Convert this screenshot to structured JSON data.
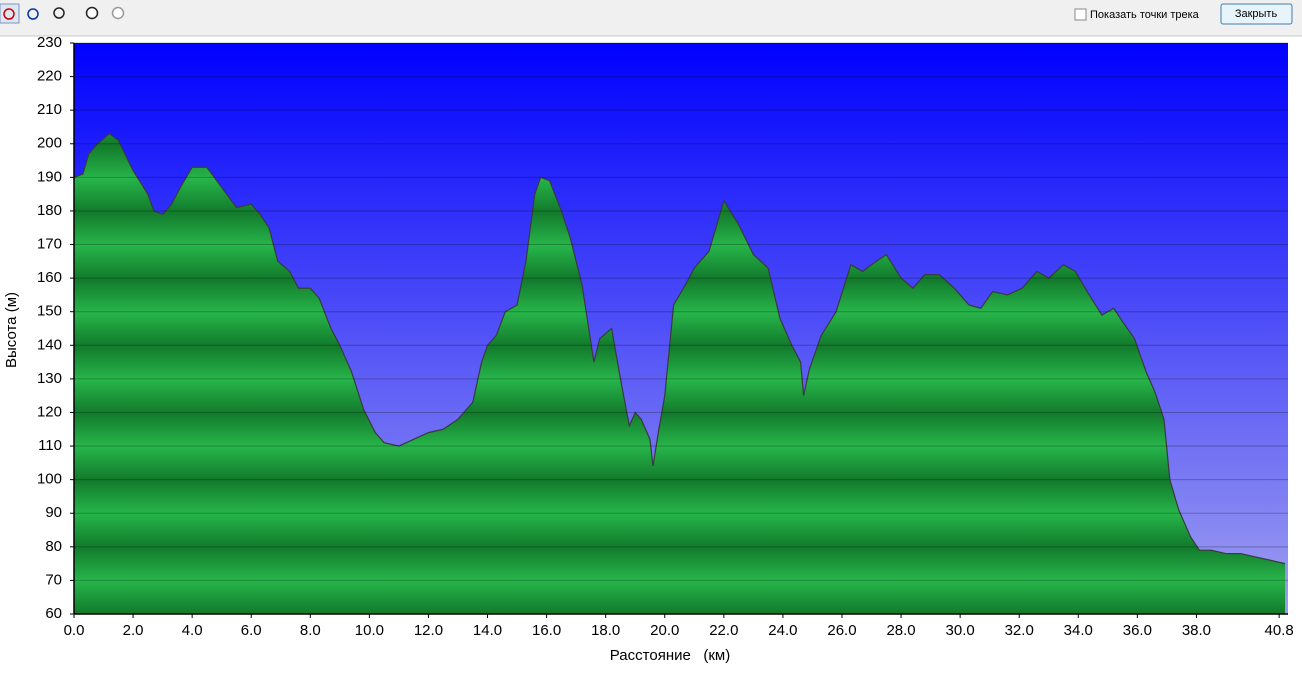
{
  "toolbar": {
    "checkbox_label": "Показать точки трека",
    "close_button": "Закрыть"
  },
  "chart_data": {
    "type": "area",
    "x_label": "Расстояние   (км)",
    "y_label": "Высота (м)",
    "color": "#1fa845",
    "line_color": "#3a3a3a",
    "grid": true,
    "xlim": [
      0,
      41.1
    ],
    "ylim": [
      60,
      230
    ],
    "xticks": [
      {
        "value": 0,
        "label": "0.0"
      },
      {
        "value": 2,
        "label": "2.0"
      },
      {
        "value": 4,
        "label": "4.0"
      },
      {
        "value": 6,
        "label": "6.0"
      },
      {
        "value": 8,
        "label": "8.0"
      },
      {
        "value": 10,
        "label": "10.0"
      },
      {
        "value": 12,
        "label": "12.0"
      },
      {
        "value": 14,
        "label": "14.0"
      },
      {
        "value": 16,
        "label": "16.0"
      },
      {
        "value": 18,
        "label": "18.0"
      },
      {
        "value": 20,
        "label": "20.0"
      },
      {
        "value": 22,
        "label": "22.0"
      },
      {
        "value": 24,
        "label": "24.0"
      },
      {
        "value": 26,
        "label": "26.0"
      },
      {
        "value": 28,
        "label": "28.0"
      },
      {
        "value": 30,
        "label": "30.0"
      },
      {
        "value": 32,
        "label": "32.0"
      },
      {
        "value": 34,
        "label": "34.0"
      },
      {
        "value": 36,
        "label": "36.0"
      },
      {
        "value": 38,
        "label": "38.0"
      },
      40.8
    ],
    "yticks": [
      60,
      70,
      80,
      90,
      100,
      110,
      120,
      130,
      140,
      150,
      160,
      170,
      180,
      190,
      200,
      210,
      220,
      230
    ],
    "x": [
      0,
      0.3,
      0.5,
      0.8,
      1.2,
      1.5,
      2.0,
      2.5,
      2.7,
      3.0,
      3.3,
      3.6,
      4.0,
      4.5,
      5.0,
      5.5,
      6.0,
      6.3,
      6.6,
      6.9,
      7.3,
      7.6,
      8.0,
      8.3,
      8.7,
      9.0,
      9.4,
      9.8,
      10.2,
      10.5,
      11.0,
      11.5,
      12.0,
      12.5,
      13.0,
      13.5,
      13.8,
      14.0,
      14.3,
      14.6,
      15.0,
      15.3,
      15.6,
      15.8,
      16.1,
      16.5,
      16.8,
      17.2,
      17.6,
      17.8,
      18.2,
      18.5,
      18.8,
      19.0,
      19.2,
      19.5,
      19.6,
      19.8,
      20.0,
      20.3,
      20.7,
      21.0,
      21.5,
      22.0,
      22.5,
      23.0,
      23.5,
      23.9,
      24.3,
      24.6,
      24.7,
      24.9,
      25.3,
      25.8,
      26.3,
      26.7,
      27.0,
      27.5,
      28.0,
      28.4,
      28.8,
      29.3,
      29.8,
      30.3,
      30.7,
      31.1,
      31.6,
      32.1,
      32.6,
      33.0,
      33.5,
      33.9,
      34.3,
      34.8,
      35.2,
      35.5,
      35.9,
      36.3,
      36.6,
      36.9,
      37.1,
      37.4,
      37.8,
      38.1,
      38.5,
      39.0,
      39.5,
      40.0,
      40.5,
      41.0
    ],
    "values": [
      190,
      191,
      197,
      200,
      203,
      201,
      192,
      185,
      180,
      179,
      182,
      187,
      193,
      193,
      187,
      181,
      182,
      179,
      175,
      165,
      162,
      157,
      157,
      154,
      145,
      140,
      132,
      121,
      114,
      111,
      110,
      112,
      114,
      115,
      118,
      123,
      135,
      140,
      143,
      150,
      152,
      165,
      185,
      190,
      189,
      180,
      172,
      158,
      135,
      142,
      145,
      130,
      116,
      120,
      118,
      112,
      104,
      115,
      125,
      152,
      158,
      163,
      168,
      183,
      176,
      167,
      163,
      148,
      140,
      135,
      125,
      133,
      143,
      150,
      164,
      162,
      164,
      167,
      160,
      157,
      161,
      161,
      157,
      152,
      151,
      156,
      155,
      157,
      162,
      160,
      164,
      162,
      156,
      149,
      151,
      147,
      142,
      132,
      126,
      118,
      100,
      91,
      83,
      79,
      79,
      78,
      78,
      77,
      76,
      75
    ]
  }
}
